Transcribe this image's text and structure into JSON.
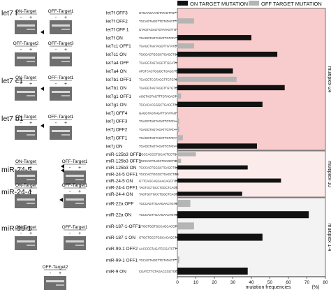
{
  "legend": {
    "on_label": "ON TARGET MUTATION",
    "off_label": "OFF TARGET MUTATION",
    "on_color": "#111111",
    "off_color": "#b5b5b5"
  },
  "gel_panels": [
    {
      "name": "let7 f",
      "gels": [
        {
          "header": "ON-Target",
          "signs": [
            "-",
            "+"
          ]
        },
        {
          "header": "OFF-Target1",
          "signs": [
            "-",
            "+"
          ]
        },
        {
          "header": "OFF-Target2",
          "signs": [
            "-",
            "+"
          ]
        },
        {
          "header": "OFF-Target3",
          "signs": [
            "-",
            "+"
          ]
        }
      ]
    },
    {
      "name": "let7 c1",
      "gels": [
        {
          "header": "ON-Target",
          "signs": [
            "-",
            "+"
          ]
        },
        {
          "header": "OFF-Target1",
          "signs": [
            "-",
            "+"
          ]
        }
      ]
    },
    {
      "name": "let7 b1",
      "gels": [
        {
          "header": "ON-Target",
          "signs": [
            "-",
            "+"
          ]
        },
        {
          "header": "OFF-Target1",
          "signs": [
            "-",
            "+"
          ]
        }
      ]
    },
    {
      "name": "miR-24-5",
      "gels": [
        {
          "header": "ON-Target",
          "signs": [
            "-",
            "+"
          ]
        },
        {
          "header": "OFF-Target1",
          "signs": [
            "-",
            "+"
          ]
        }
      ]
    },
    {
      "name": "miR-24-4",
      "gels": [
        {
          "header": "ON-Target",
          "signs": [
            "-",
            "+"
          ]
        },
        {
          "header": "OFF-Target1",
          "signs": [
            "-",
            "+"
          ]
        }
      ]
    },
    {
      "name": "miR-99-1",
      "gels": [
        {
          "header": "ON-Target",
          "signs": [
            "-",
            "+"
          ]
        },
        {
          "header": "OFF-Target1",
          "signs": [
            "-",
            "+"
          ]
        },
        {
          "header": "OFF-Target2",
          "signs": [
            "-",
            "+"
          ]
        }
      ]
    }
  ],
  "chart_data": {
    "type": "bar",
    "orientation": "horizontal",
    "xlabel": "mutation frequencies",
    "xunit": "(%)",
    "xlim": [
      0,
      80
    ],
    "xticks": [
      0,
      10,
      20,
      30,
      40,
      50,
      60,
      70,
      80
    ],
    "groups": [
      {
        "label": "multiplex-24",
        "color": "#f8cccc",
        "rows": [
          {
            "name": "let7f OFF3",
            "seq": "GTGAAGAATGTATAGTTGT",
            "type": "off",
            "value": 0
          },
          {
            "name": "let7f OFF2",
            "seq": "TGCAGTAGGTTGTATAGTT",
            "type": "off",
            "value": 9
          },
          {
            "name": "let7f OFF 1",
            "seq": "GTAGTAGAGTGTATAGTTG",
            "type": "off",
            "value": 0
          },
          {
            "name": "let7f ON",
            "seq": "TGAGGTAGTAGATTGTATA",
            "type": "on",
            "value": 40
          },
          {
            "name": "let7c1 OFF1",
            "seq": "TGAGCTAGTAGGTTGTATG",
            "type": "off",
            "value": 9
          },
          {
            "name": "let7c1 ON",
            "seq": "TGCCACTGGGCTGAGCTGG",
            "type": "on",
            "value": 54
          },
          {
            "name": "let7a4 OFF",
            "seq": "TGAGGTAGTAGGTTGCATA",
            "type": "off",
            "value": 0
          },
          {
            "name": "let7a4 ON",
            "seq": "ATGTCACTGGGCTGAGCTG",
            "type": "on",
            "value": 30
          },
          {
            "name": "let7b1 OFF1",
            "seq": "TGAGGTCGTAGGTTGTGTG",
            "type": "off",
            "value": 32
          },
          {
            "name": "let7b1 ON",
            "seq": "TGAGGTAGTAGGTTGTGTG",
            "type": "on",
            "value": 58
          },
          {
            "name": "let7g1 OFF1",
            "seq": "AGGTAGTAGTTTGTACAGT",
            "type": "off",
            "value": 2
          },
          {
            "name": "let7g1 ON",
            "seq": "TGCACACGGGCTGAGCTGG",
            "type": "on",
            "value": 46
          },
          {
            "name": "let7j OFF4",
            "seq": "GAGGTAGTAGATTGTATAG",
            "type": "off",
            "value": 0
          },
          {
            "name": "let7j OFF3",
            "seq": "TGAGGTAGTAGATTGTATA",
            "type": "off",
            "value": 1
          },
          {
            "name": "let7j OFF2",
            "seq": "TGAGGTAGTAGATTGTATA",
            "type": "off",
            "value": 1
          },
          {
            "name": "let7j OFF1",
            "seq": "TGAGGTAGTAGATTGTATA",
            "type": "off",
            "value": 3
          },
          {
            "name": "let7j ON",
            "seq": "TGAGGTAGTAGATTGTATA",
            "type": "on",
            "value": 43
          }
        ]
      },
      {
        "label": "multiplex-10",
        "color": "#fcebeb",
        "rows": [
          {
            "name": "miR-125b3 OFF2",
            "seq": "GGCCACCCTGCACTCCTG",
            "type": "off",
            "value": 10
          },
          {
            "name": "miR-125b3 OFF1",
            "seq": "TGCCACTGAGCTGAGCTGG",
            "type": "off",
            "value": 2
          },
          {
            "name": "miR-125b3 ON",
            "seq": "TGCCACTGGGCTGAGCTGG",
            "type": "on",
            "value": 38
          },
          {
            "name": "miR-24-5 OFF1",
            "seq": "TGCCACTGGGCTGAGCTGG",
            "type": "off",
            "value": 0
          },
          {
            "name": "miR-24-5 ON",
            "seq": "GTTCAGCAGGAACAGCTGC",
            "type": "on",
            "value": 56
          },
          {
            "name": "miR-24-4 OFF1",
            "seq": "TAGTGCTGCCTGGCTCAGC",
            "type": "off",
            "value": 0
          },
          {
            "name": "miR-24-4 ON",
            "seq": "TAGTGCTGCCTGGCTCAGC",
            "type": "on",
            "value": 35
          }
        ]
      },
      {
        "label": "multiplex 1-4",
        "color": "#f3f3f3",
        "rows": [
          {
            "name": "miR-22a OFF",
            "seq": "TGCCAGTTGAAGAACTGTG",
            "type": "off",
            "value": 7
          },
          {
            "name": "miR-22a ON",
            "seq": "TGCCAGTTGAAGAACTGTG",
            "type": "on",
            "value": 71
          },
          {
            "name": "miR-187-1-OFF1",
            "seq": "GTGGTGGTGCCAGCACGTC",
            "type": "off",
            "value": 9
          },
          {
            "name": "miR-187-1 ON",
            "seq": "GTGCTGCCTGGCACAGCTG",
            "type": "on",
            "value": 46
          },
          {
            "name": "miR-99-1 OFF2",
            "seq": "AACCCGTAGATCCGATCTT",
            "type": "off",
            "value": 0
          },
          {
            "name": "miR-99-1 OFF1",
            "seq": "TGCAGTAGGTTGTATAGTT",
            "type": "off",
            "value": 1
          },
          {
            "name": "miR-9 ON",
            "seq": "CGATCTTCTAGACCGGTGC",
            "type": "on",
            "value": 38
          }
        ]
      }
    ]
  }
}
